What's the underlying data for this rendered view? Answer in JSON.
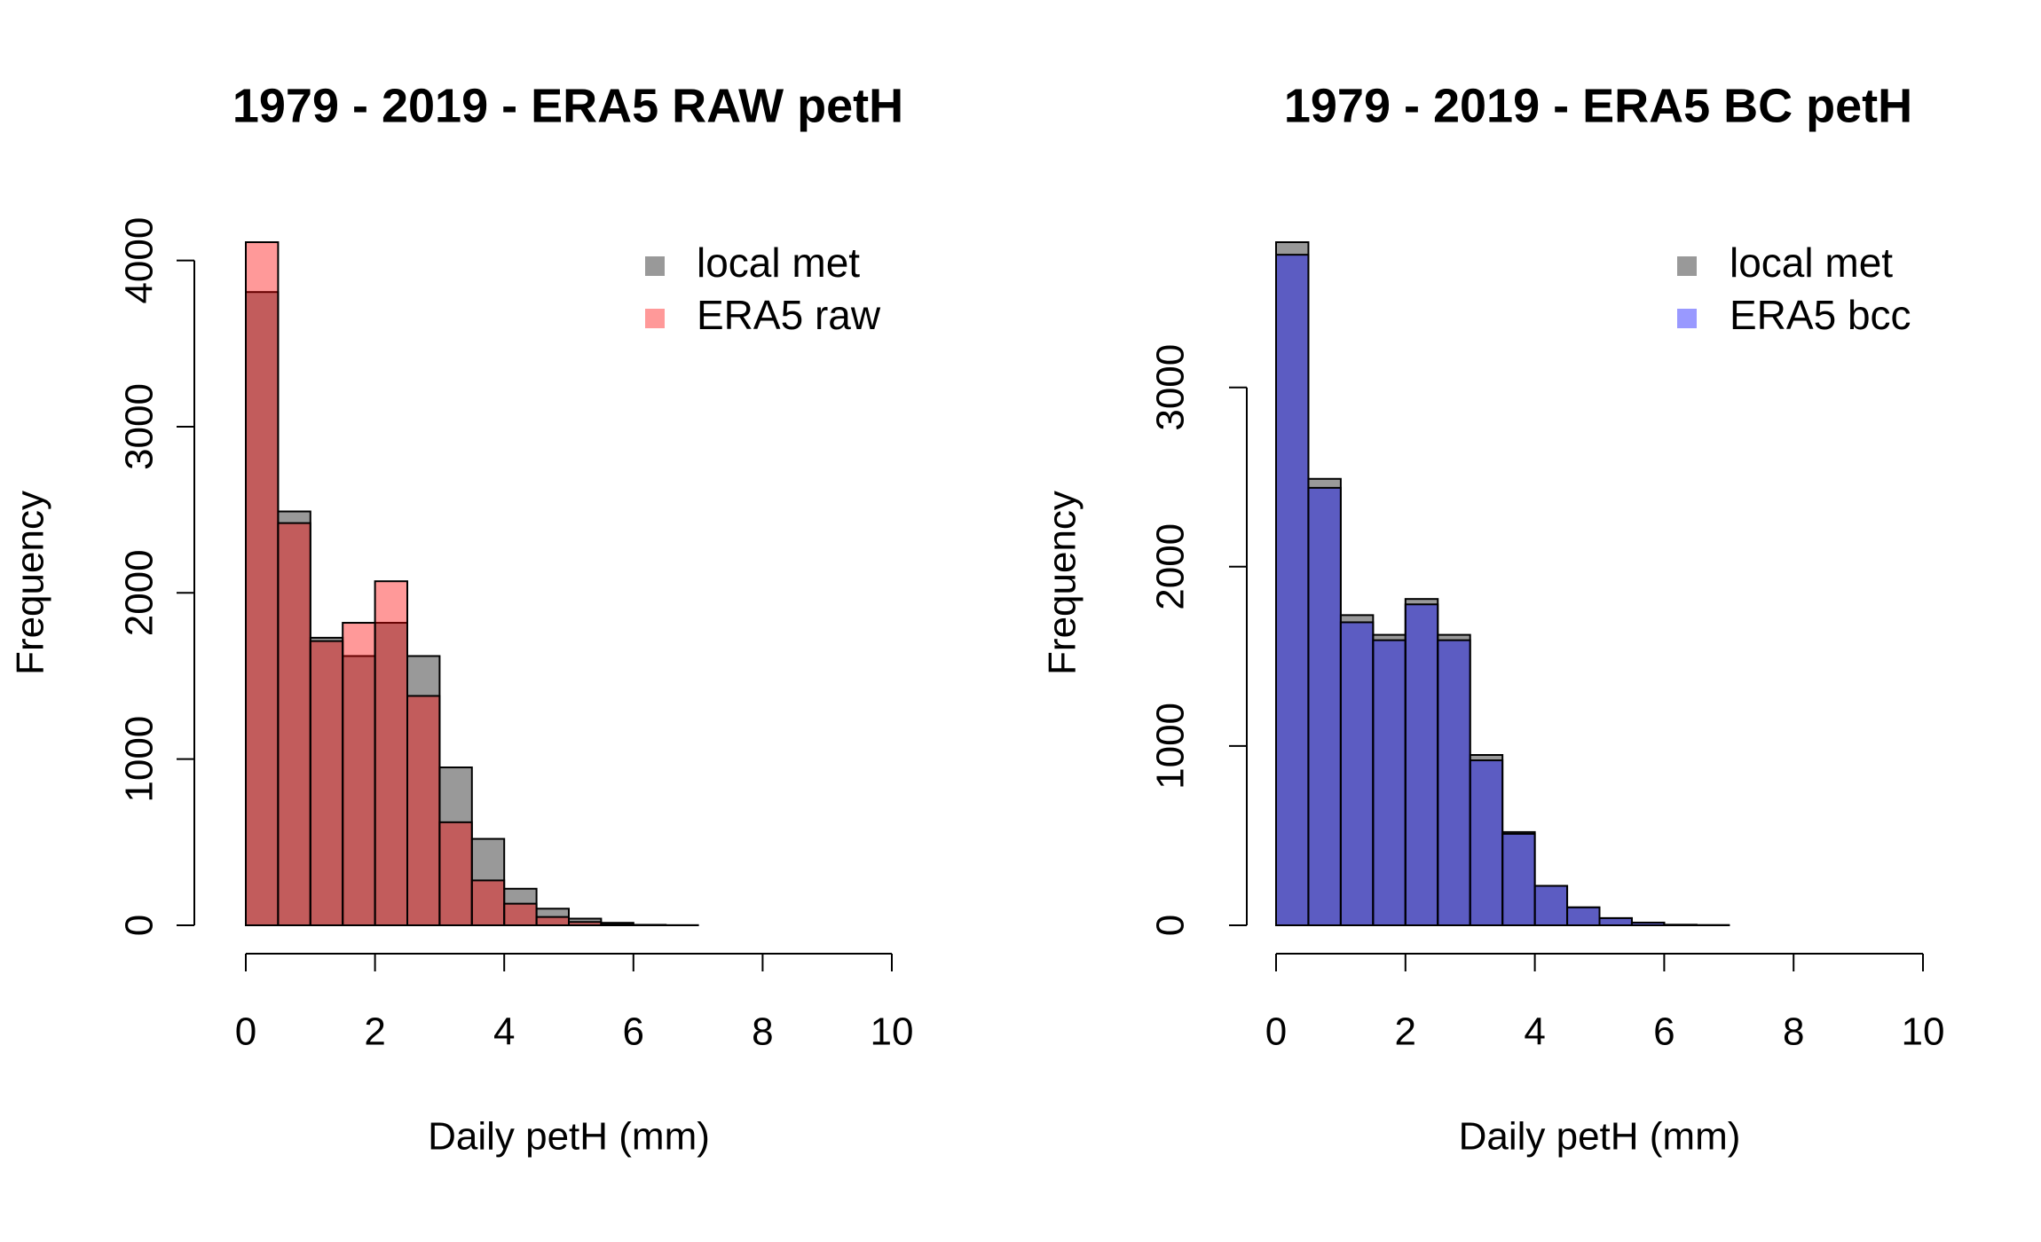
{
  "chart_data": [
    {
      "type": "histogram",
      "title": "1979 - 2019 - ERA5 RAW petH",
      "x_label": "Daily petH (mm)",
      "y_label": "Frequency",
      "bins": [
        0,
        0.5,
        1,
        1.5,
        2,
        2.5,
        3,
        3.5,
        4,
        4.5,
        5,
        5.5,
        6,
        6.5,
        7
      ],
      "series": [
        {
          "name": "local met",
          "color": "rgba(128,128,128,0.8)",
          "values": [
            3810,
            2490,
            1730,
            1620,
            1820,
            1620,
            950,
            520,
            220,
            100,
            40,
            15,
            3,
            1
          ]
        },
        {
          "name": "ERA5 raw",
          "color": "rgba(255,0,0,0.4)",
          "values": [
            4110,
            2420,
            1710,
            1820,
            2070,
            1380,
            620,
            270,
            130,
            50,
            20,
            5,
            1,
            0
          ]
        }
      ],
      "xlim": [
        0,
        10
      ],
      "xticks": [
        0,
        2,
        4,
        6,
        8,
        10
      ],
      "ylim": [
        0,
        4110
      ],
      "yticks": [
        0,
        1000,
        2000,
        3000,
        4000
      ],
      "legend": "topright"
    },
    {
      "type": "histogram",
      "title": "1979 - 2019 - ERA5 BC petH",
      "x_label": "Daily petH (mm)",
      "y_label": "Frequency",
      "bins": [
        0,
        0.5,
        1,
        1.5,
        2,
        2.5,
        3,
        3.5,
        4,
        4.5,
        5,
        5.5,
        6,
        6.5,
        7
      ],
      "series": [
        {
          "name": "local met",
          "color": "rgba(128,128,128,0.8)",
          "values": [
            3810,
            2490,
            1730,
            1620,
            1820,
            1620,
            950,
            520,
            220,
            100,
            40,
            15,
            3,
            1
          ]
        },
        {
          "name": "ERA5 bcc",
          "color": "rgba(0,0,255,0.4)",
          "values": [
            3740,
            2440,
            1690,
            1590,
            1790,
            1590,
            920,
            510,
            220,
            100,
            40,
            15,
            3,
            1
          ]
        }
      ],
      "xlim": [
        0,
        10
      ],
      "xticks": [
        0,
        2,
        4,
        6,
        8,
        10
      ],
      "ylim": [
        0,
        3810
      ],
      "yticks": [
        0,
        1000,
        2000,
        3000
      ],
      "legend": "topright"
    }
  ]
}
